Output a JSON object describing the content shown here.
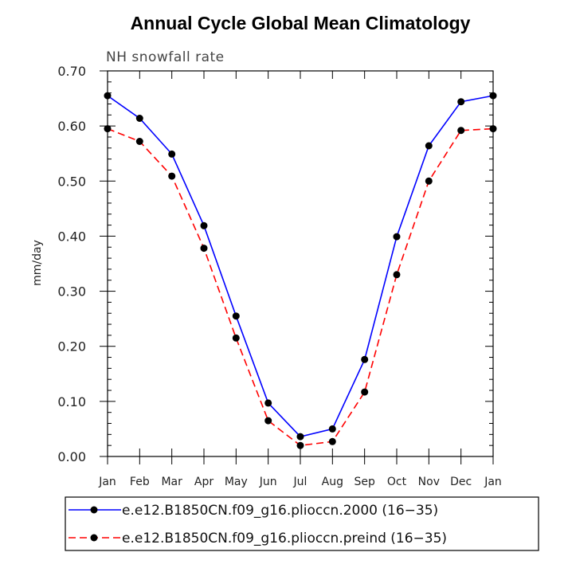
{
  "chart_data": {
    "type": "line",
    "title": "Annual Cycle Global Mean Climatology",
    "subtitle": "NH snowfall rate",
    "xlabel": "",
    "ylabel": "mm/day",
    "ylim": [
      0,
      0.7
    ],
    "yticks": [
      "0.00",
      "0.10",
      "0.20",
      "0.30",
      "0.40",
      "0.50",
      "0.60",
      "0.70"
    ],
    "categories": [
      "Jan",
      "Feb",
      "Mar",
      "Apr",
      "May",
      "Jun",
      "Jul",
      "Aug",
      "Sep",
      "Oct",
      "Nov",
      "Dec",
      "Jan"
    ],
    "grid": false,
    "legend_position": "bottom",
    "series": [
      {
        "name": "e.e12.B1850CN.f09_g16.plioccn.2000 (16−35)",
        "color": "#0000ff",
        "line_style": "solid",
        "values": [
          0.655,
          0.614,
          0.549,
          0.419,
          0.255,
          0.097,
          0.036,
          0.05,
          0.176,
          0.399,
          0.564,
          0.644,
          0.655
        ]
      },
      {
        "name": "e.e12.B1850CN.f09_g16.plioccn.preind (16−35)",
        "color": "#ff0000",
        "line_style": "dashed",
        "values": [
          0.595,
          0.572,
          0.509,
          0.378,
          0.215,
          0.065,
          0.02,
          0.027,
          0.117,
          0.33,
          0.5,
          0.592,
          0.595
        ]
      }
    ]
  }
}
